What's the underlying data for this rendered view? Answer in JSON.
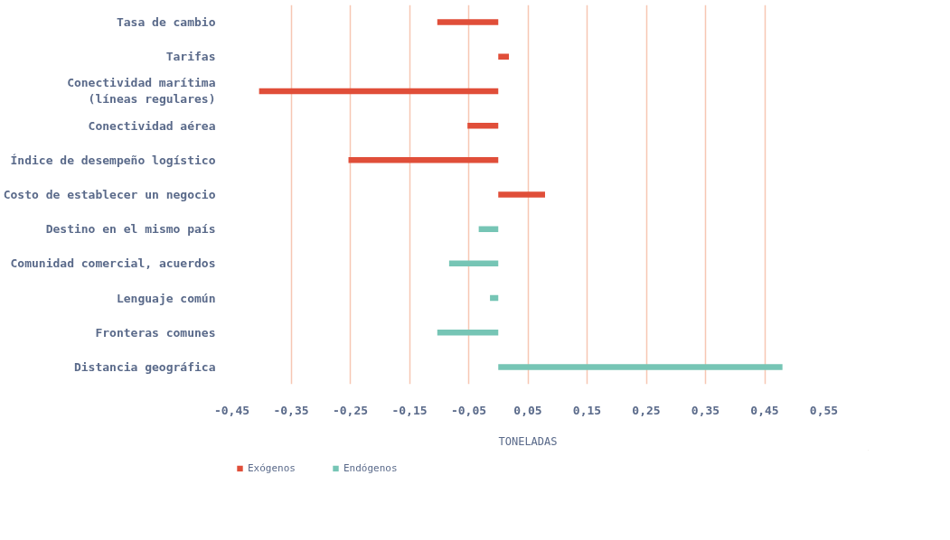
{
  "chart_data": {
    "type": "bar",
    "orientation": "horizontal",
    "xlabel": "TONELADAS",
    "categories": [
      "Tasa de cambio",
      "Tarifas",
      "Conectividad marítima\n(líneas regulares)",
      "Conectividad aérea",
      "Índice de desempeño logístico",
      "Costo de establecer un negocio",
      "Destino en el mismo país",
      "Comunidad comercial, acuerdos",
      "Lenguaje común",
      "Fronteras comunes",
      "Distancia geográfica"
    ],
    "series": [
      {
        "name": "Exógenos",
        "color": "#e04e39",
        "values": [
          -0.103,
          0.018,
          -0.404,
          -0.052,
          -0.253,
          0.079,
          null,
          null,
          null,
          null,
          null
        ]
      },
      {
        "name": "Endógenos",
        "color": "#76c5b5",
        "values": [
          null,
          null,
          null,
          null,
          null,
          null,
          -0.033,
          -0.083,
          -0.014,
          -0.103,
          0.48
        ]
      }
    ],
    "xlim": [
      -0.45,
      0.55
    ],
    "xticks": [
      {
        "value": -0.45,
        "label": "-0,45"
      },
      {
        "value": -0.35,
        "label": "-0,35"
      },
      {
        "value": -0.25,
        "label": "-0,25"
      },
      {
        "value": -0.15,
        "label": "-0,15"
      },
      {
        "value": -0.05,
        "label": "-0,05"
      },
      {
        "value": 0.05,
        "label": "0,05"
      },
      {
        "value": 0.15,
        "label": "0,15"
      },
      {
        "value": 0.25,
        "label": "0,25"
      },
      {
        "value": 0.35,
        "label": "0,35"
      },
      {
        "value": 0.45,
        "label": "0,45"
      },
      {
        "value": 0.55,
        "label": "0,55"
      }
    ],
    "grid": "x",
    "legend": "bottom left"
  }
}
